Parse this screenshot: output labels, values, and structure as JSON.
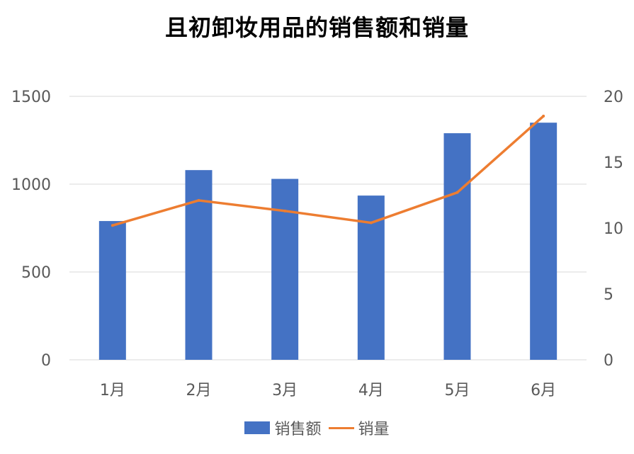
{
  "chart_data": {
    "type": "bar",
    "title": "且初卸妆用品的销售额和销量",
    "categories": [
      "1月",
      "2月",
      "3月",
      "4月",
      "5月",
      "6月"
    ],
    "series": [
      {
        "name": "销售额",
        "type": "bar",
        "axis": "left",
        "color": "#4472C4",
        "values": [
          790,
          1080,
          1030,
          935,
          1290,
          1350
        ]
      },
      {
        "name": "销量",
        "type": "line",
        "axis": "right",
        "color": "#ED7D31",
        "values": [
          10.2,
          12.1,
          11.3,
          10.4,
          12.7,
          18.5
        ]
      }
    ],
    "y_left": {
      "min": 0,
      "max": 1500,
      "ticks": [
        "0",
        "500",
        "1000",
        "1500"
      ]
    },
    "y_right": {
      "min": 0,
      "max": 20,
      "ticks": [
        "0",
        "5",
        "10",
        "15",
        "20"
      ]
    },
    "grid": true,
    "legend_position": "bottom"
  }
}
